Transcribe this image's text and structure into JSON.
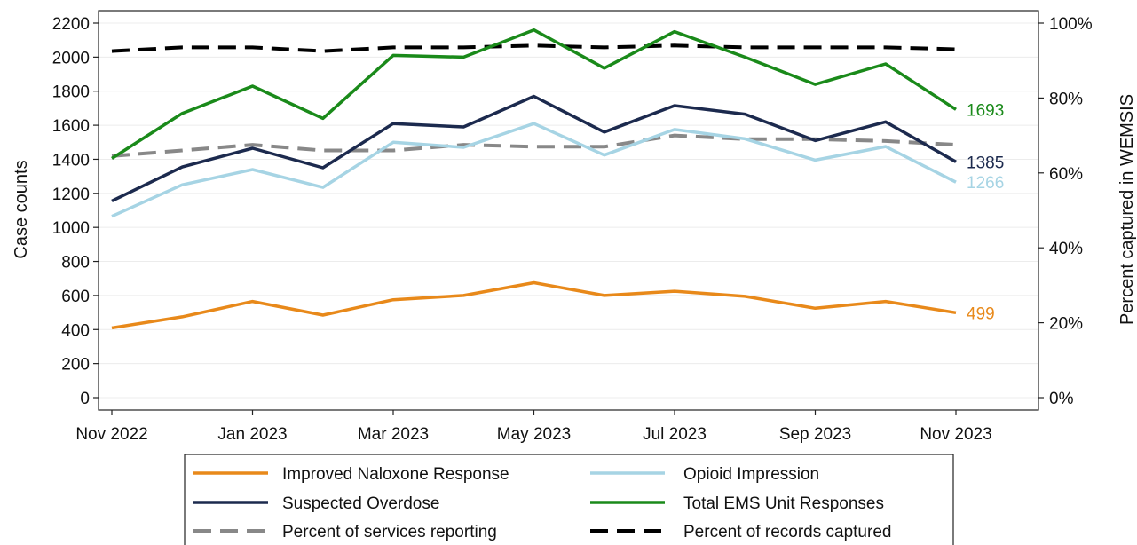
{
  "chart_data": {
    "type": "line",
    "x": [
      "Nov 2022",
      "Dec 2022",
      "Jan 2023",
      "Feb 2023",
      "Mar 2023",
      "Apr 2023",
      "May 2023",
      "Jun 2023",
      "Jul 2023",
      "Aug 2023",
      "Sep 2023",
      "Oct 2023",
      "Nov 2023"
    ],
    "x_tick_labels": [
      "Nov 2022",
      "Jan 2023",
      "Mar 2023",
      "May 2023",
      "Jul 2023",
      "Sep 2023",
      "Nov 2023"
    ],
    "ylabel": "Case counts",
    "ylim": [
      0,
      2200
    ],
    "y_ticks": [
      0,
      200,
      400,
      600,
      800,
      1000,
      1200,
      1400,
      1600,
      1800,
      2000,
      2200
    ],
    "y2label": "Percent captured in WEMSIS",
    "y2lim": [
      0,
      100
    ],
    "y2_ticks": [
      "0%",
      "20%",
      "40%",
      "60%",
      "80%",
      "100%"
    ],
    "grid": true,
    "legend_position": "bottom",
    "series": [
      {
        "name": "Improved Naloxone Response",
        "axis": "left",
        "color": "#e8891a",
        "dash": "solid",
        "values": [
          410,
          475,
          565,
          485,
          575,
          600,
          675,
          600,
          625,
          595,
          525,
          565,
          499
        ],
        "end_label": "499"
      },
      {
        "name": "Opioid Impression",
        "axis": "left",
        "color": "#a6d4e4",
        "dash": "solid",
        "values": [
          1065,
          1250,
          1340,
          1235,
          1500,
          1470,
          1610,
          1425,
          1575,
          1520,
          1395,
          1475,
          1266
        ],
        "end_label": "1266"
      },
      {
        "name": "Suspected Overdose",
        "axis": "left",
        "color": "#1c2a4e",
        "dash": "solid",
        "values": [
          1155,
          1355,
          1465,
          1350,
          1610,
          1590,
          1770,
          1560,
          1715,
          1665,
          1510,
          1620,
          1385
        ],
        "end_label": "1385"
      },
      {
        "name": "Total EMS Unit Responses",
        "axis": "left",
        "color": "#1a8a1a",
        "dash": "solid",
        "values": [
          1405,
          1670,
          1830,
          1640,
          2010,
          2000,
          2160,
          1935,
          2150,
          2000,
          1840,
          1960,
          1693
        ],
        "end_label": "1693"
      },
      {
        "name": "Percent of services reporting",
        "axis": "right",
        "color": "#888888",
        "dash": "dashed",
        "values": [
          64.5,
          66,
          67.5,
          66,
          66,
          67.5,
          67,
          67,
          70,
          69,
          69,
          68.5,
          67.5
        ]
      },
      {
        "name": "Percent of records captured",
        "axis": "right",
        "color": "#000000",
        "dash": "dashed",
        "values": [
          92.5,
          93.5,
          93.5,
          92.5,
          93.5,
          93.5,
          94,
          93.5,
          94,
          93.5,
          93.5,
          93.5,
          93
        ]
      }
    ]
  }
}
